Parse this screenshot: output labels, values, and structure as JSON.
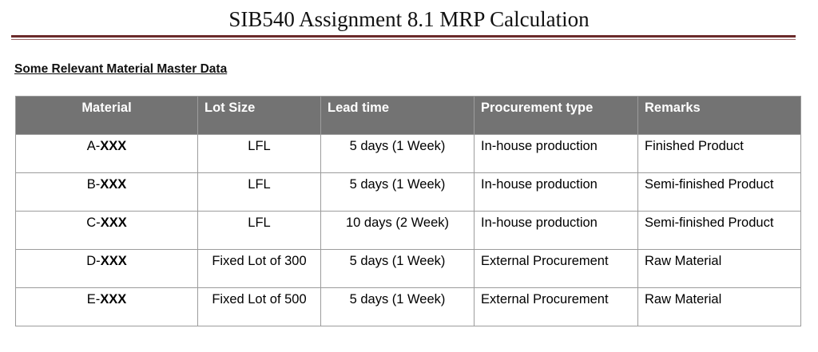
{
  "document": {
    "title": "SIB540 Assignment 8.1 MRP Calculation",
    "section_heading": "Some Relevant Material Master Data"
  },
  "table": {
    "headers": {
      "material": "Material",
      "lot_size": "Lot Size",
      "lead_time": "Lead time",
      "procurement_type": "Procurement type",
      "remarks": "Remarks"
    },
    "rows": [
      {
        "material_prefix": "A-",
        "material_code": "XXX",
        "lot_size": "LFL",
        "lead_time": "5 days (1 Week)",
        "procurement_type": "In-house production",
        "remarks": "Finished Product"
      },
      {
        "material_prefix": "B-",
        "material_code": "XXX",
        "lot_size": "LFL",
        "lead_time": "5 days (1 Week)",
        "procurement_type": "In-house production",
        "remarks": "Semi-finished Product"
      },
      {
        "material_prefix": "C-",
        "material_code": "XXX",
        "lot_size": "LFL",
        "lead_time": "10 days (2 Week)",
        "procurement_type": "In-house production",
        "remarks": "Semi-finished Product"
      },
      {
        "material_prefix": "D-",
        "material_code": "XXX",
        "lot_size": "Fixed Lot of 300",
        "lead_time": "5 days (1 Week)",
        "procurement_type": "External Procurement",
        "remarks": "Raw Material"
      },
      {
        "material_prefix": "E-",
        "material_code": "XXX",
        "lot_size": "Fixed Lot of 500",
        "lead_time": "5 days (1 Week)",
        "procurement_type": "External Procurement",
        "remarks": "Raw Material"
      }
    ]
  },
  "colors": {
    "header_bg": "#737373",
    "title_rule": "#6b2a2a"
  }
}
